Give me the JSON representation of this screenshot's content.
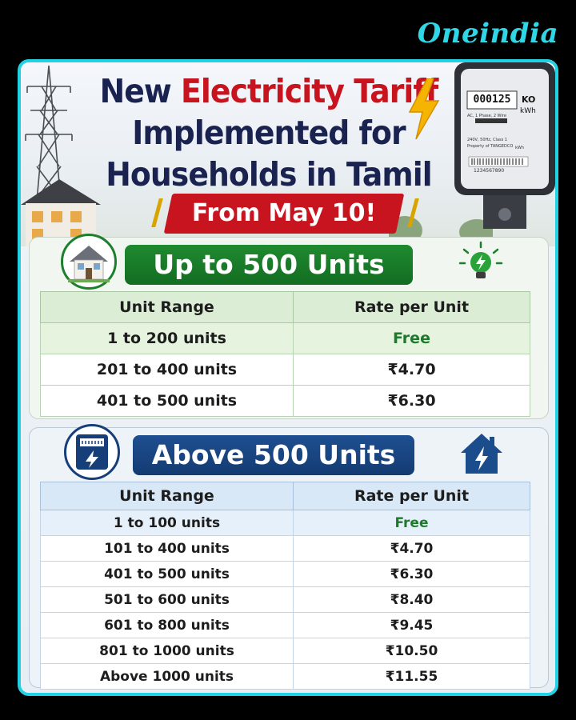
{
  "brand": "Oneindia",
  "headline": {
    "line1_prefix": "New ",
    "line1_highlight": "Electricity Tariff",
    "line2": "Implemented for",
    "line3": "Households in Tamil Nadu"
  },
  "date_banner": "From May 10!",
  "meter": {
    "reading": "000125",
    "unit_top": "KO",
    "unit": "kWh",
    "spec_line1": "AC, 1 Phase, 2 Wire",
    "spec_line2": "240V, 50Hz, Class 1",
    "spec_line3": "Property of TANGEDCO",
    "serial": "1234567890",
    "unit_small": "kWh"
  },
  "section1": {
    "title": "Up to 500 Units",
    "headers": [
      "Unit Range",
      "Rate per Unit"
    ],
    "rows": [
      {
        "range": "1 to 200 units",
        "rate": "Free"
      },
      {
        "range": "201 to 400 units",
        "rate": "₹4.70"
      },
      {
        "range": "401 to 500 units",
        "rate": "₹6.30"
      }
    ]
  },
  "section2": {
    "title": "Above 500 Units",
    "headers": [
      "Unit Range",
      "Rate per Unit"
    ],
    "rows": [
      {
        "range": "1 to 100 units",
        "rate": "Free"
      },
      {
        "range": "101 to 400 units",
        "rate": "₹4.70"
      },
      {
        "range": "401 to 500 units",
        "rate": "₹6.30"
      },
      {
        "range": "501 to 600 units",
        "rate": "₹8.40"
      },
      {
        "range": "601 to 800 units",
        "rate": "₹9.45"
      },
      {
        "range": "801 to 1000 units",
        "rate": "₹10.50"
      },
      {
        "range": "Above 1000 units",
        "rate": "₹11.55"
      }
    ]
  },
  "colors": {
    "accent_cyan": "#22d2e4",
    "title_navy": "#1a2250",
    "tariff_red": "#c8141e",
    "green": "#1c7a2a",
    "blue": "#163f79"
  },
  "icons": [
    "house-icon",
    "lightbulb-icon",
    "meter-icon",
    "house-bolt-icon",
    "lightning-bolt-icon",
    "electric-meter-icon",
    "transmission-tower-icon"
  ]
}
